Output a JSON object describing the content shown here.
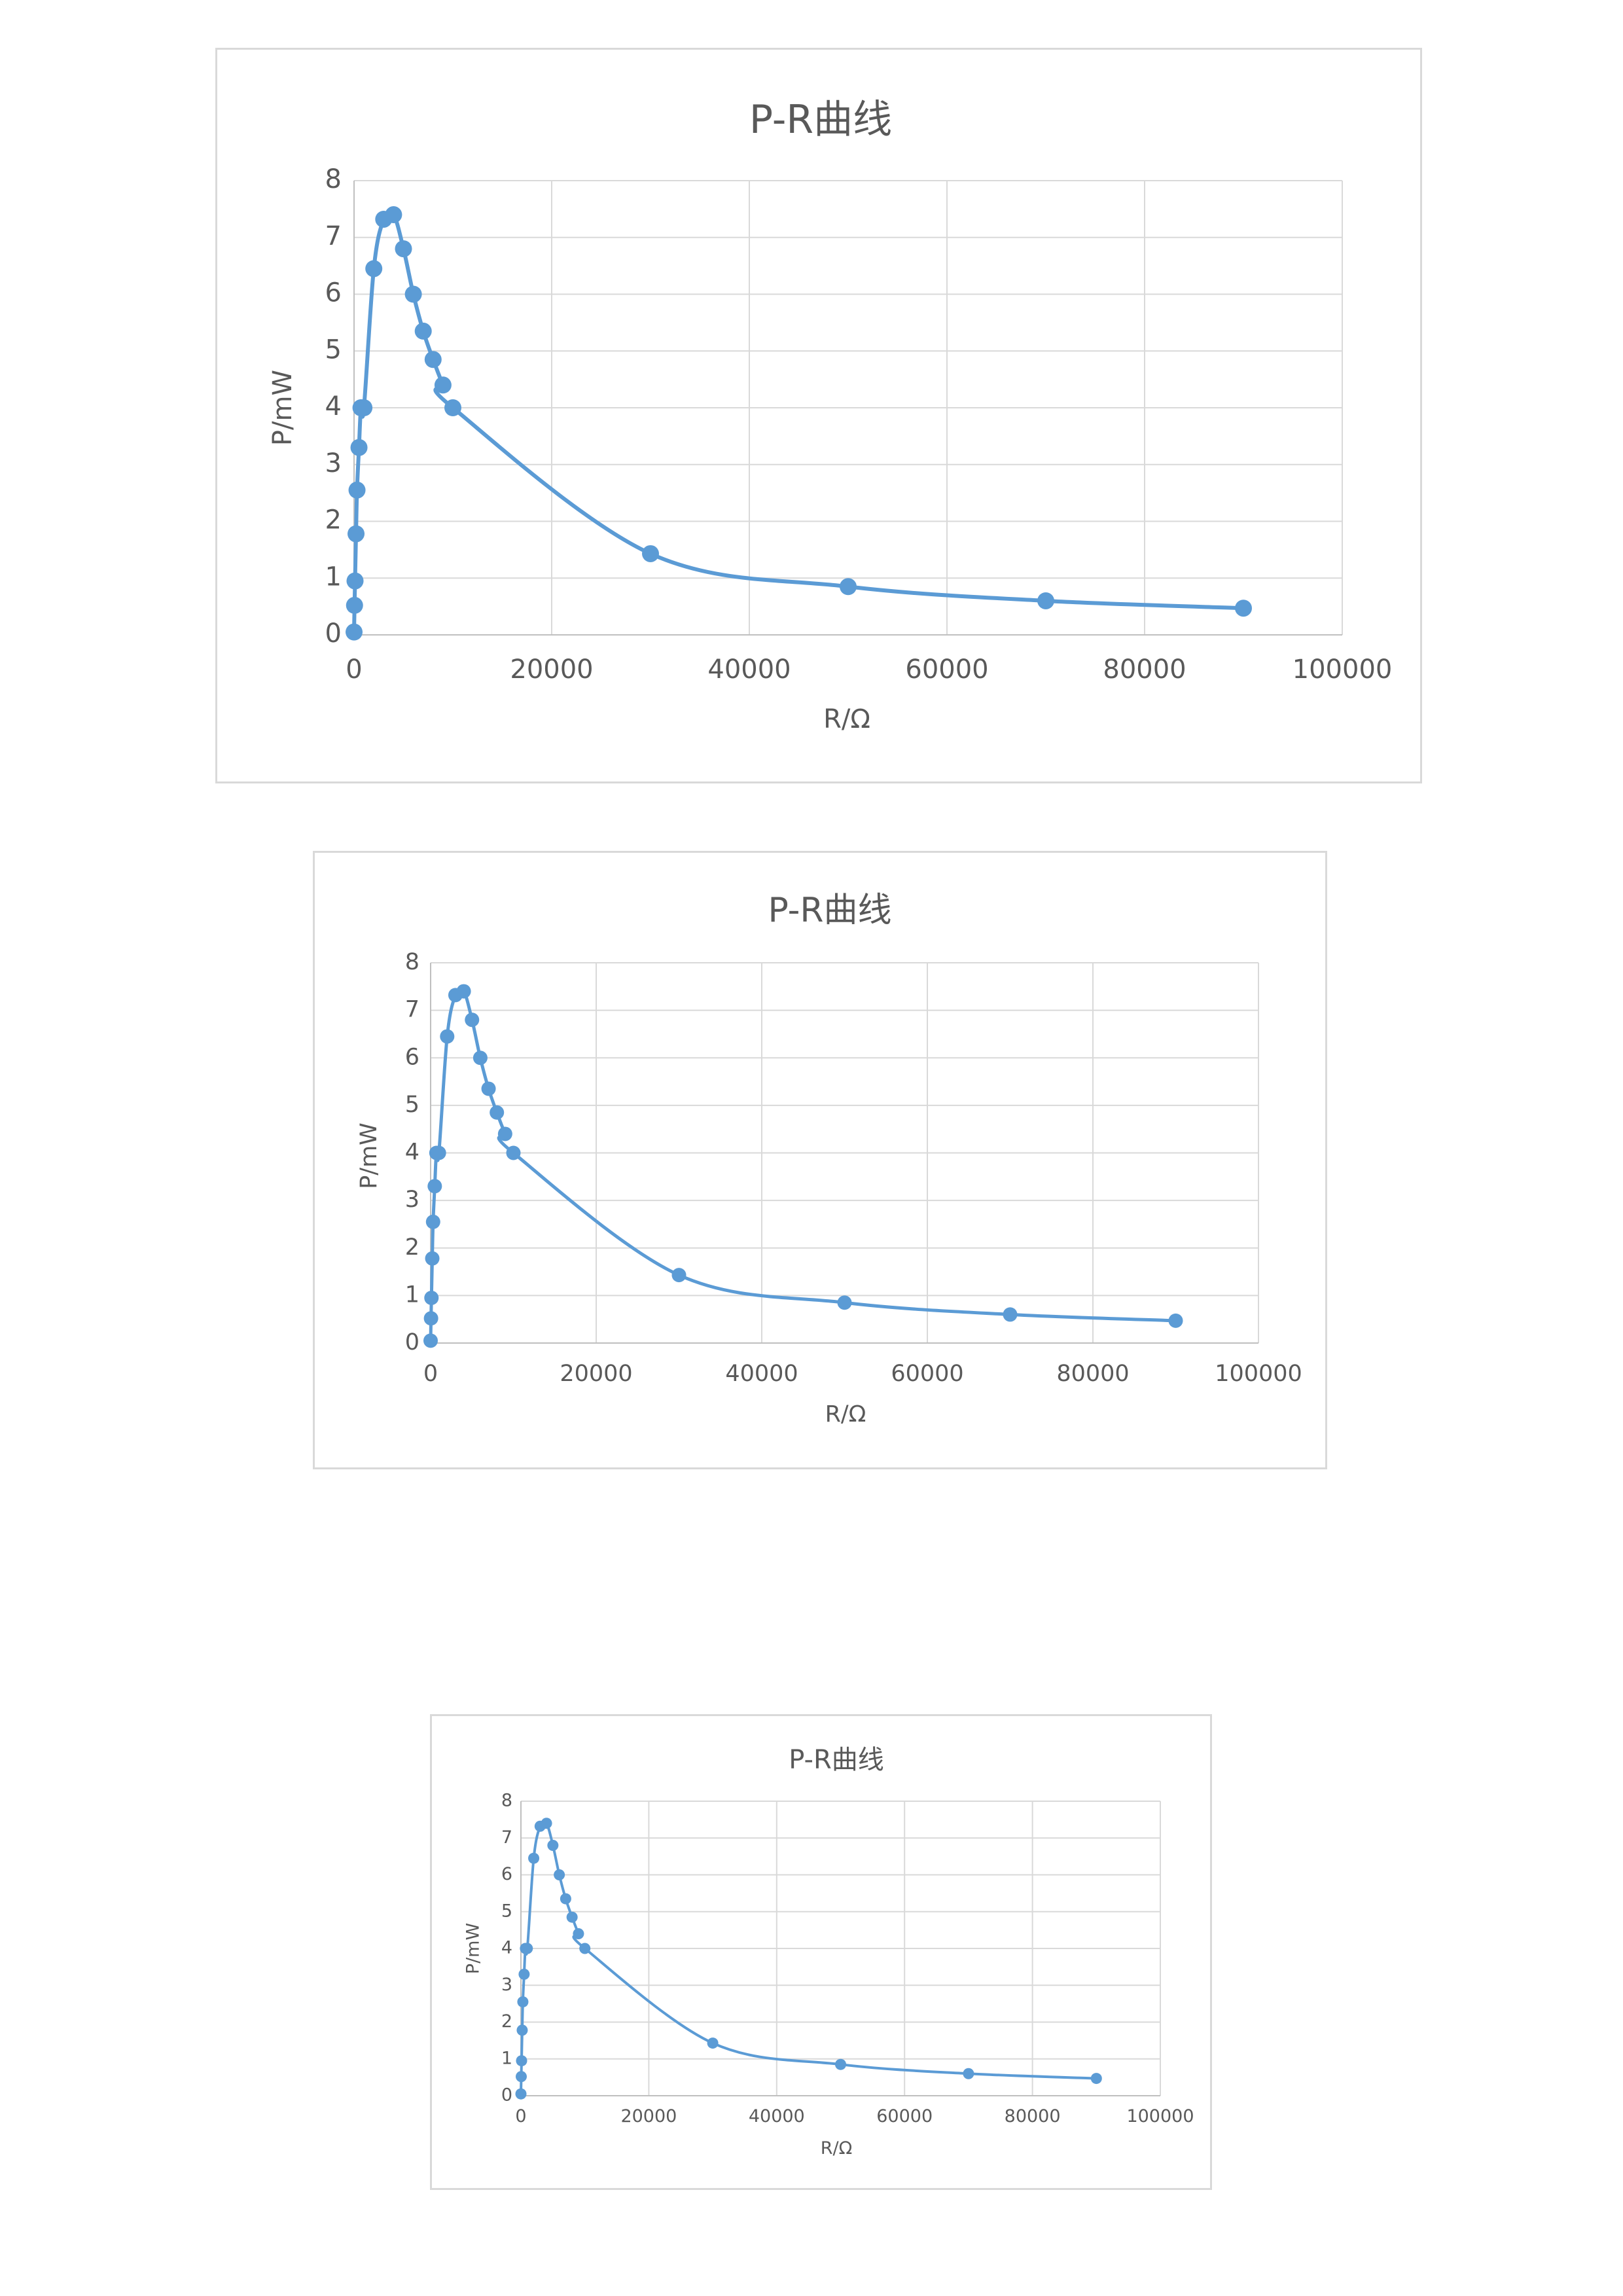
{
  "chart_data": [
    {
      "type": "scatter",
      "title": "P-R曲线",
      "xlabel": "R/Ω",
      "ylabel": "P/mW",
      "xlim": [
        0,
        100000
      ],
      "ylim": [
        0,
        8
      ],
      "xticks": [
        "0",
        "20000",
        "40000",
        "60000",
        "80000",
        "100000"
      ],
      "yticks": [
        "0",
        "1",
        "2",
        "3",
        "4",
        "5",
        "6",
        "7",
        "8"
      ],
      "grid": true,
      "smooth": true,
      "color": "#5b9bd5",
      "series": [
        {
          "x": [
            0,
            50,
            100,
            200,
            300,
            500,
            700,
            1000,
            2000,
            3000,
            4000,
            5000,
            6000,
            7000,
            8000,
            9000,
            10000,
            30000,
            50000,
            70000,
            90000
          ],
          "y": [
            0.05,
            0.52,
            0.95,
            1.78,
            2.55,
            3.3,
            4.0,
            4.0,
            6.45,
            7.32,
            7.4,
            6.8,
            6.0,
            5.35,
            4.85,
            4.4,
            4.0,
            1.43,
            0.85,
            0.6,
            0.47
          ]
        }
      ]
    },
    {
      "type": "scatter",
      "title": "P-R曲线",
      "xlabel": "R/Ω",
      "ylabel": "P/mW",
      "xlim": [
        0,
        100000
      ],
      "ylim": [
        0,
        8
      ],
      "xticks": [
        "0",
        "20000",
        "40000",
        "60000",
        "80000",
        "100000"
      ],
      "yticks": [
        "0",
        "1",
        "2",
        "3",
        "4",
        "5",
        "6",
        "7",
        "8"
      ],
      "grid": true,
      "smooth": true,
      "color": "#5b9bd5",
      "series": [
        {
          "x": [
            0,
            50,
            100,
            200,
            300,
            500,
            700,
            1000,
            2000,
            3000,
            4000,
            5000,
            6000,
            7000,
            8000,
            9000,
            10000,
            30000,
            50000,
            70000,
            90000
          ],
          "y": [
            0.05,
            0.52,
            0.95,
            1.78,
            2.55,
            3.3,
            4.0,
            4.0,
            6.45,
            7.32,
            7.4,
            6.8,
            6.0,
            5.35,
            4.85,
            4.4,
            4.0,
            1.43,
            0.85,
            0.6,
            0.47
          ]
        }
      ]
    },
    {
      "type": "scatter",
      "title": "P-R曲线",
      "xlabel": "R/Ω",
      "ylabel": "P/mW",
      "xlim": [
        0,
        100000
      ],
      "ylim": [
        0,
        8
      ],
      "xticks": [
        "0",
        "20000",
        "40000",
        "60000",
        "80000",
        "100000"
      ],
      "yticks": [
        "0",
        "1",
        "2",
        "3",
        "4",
        "5",
        "6",
        "7",
        "8"
      ],
      "grid": true,
      "smooth": true,
      "color": "#5b9bd5",
      "series": [
        {
          "x": [
            0,
            50,
            100,
            200,
            300,
            500,
            700,
            1000,
            2000,
            3000,
            4000,
            5000,
            6000,
            7000,
            8000,
            9000,
            10000,
            30000,
            50000,
            70000,
            90000
          ],
          "y": [
            0.05,
            0.52,
            0.95,
            1.78,
            2.55,
            3.3,
            4.0,
            4.0,
            6.45,
            7.32,
            7.4,
            6.8,
            6.0,
            5.35,
            4.85,
            4.4,
            4.0,
            1.43,
            0.85,
            0.6,
            0.47
          ]
        }
      ]
    }
  ]
}
